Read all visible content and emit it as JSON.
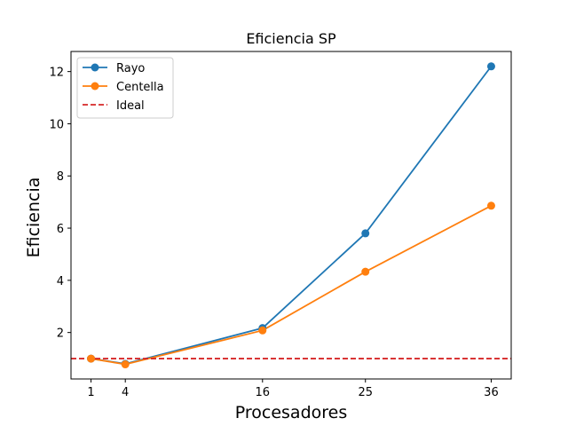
{
  "chart_data": {
    "type": "line",
    "title": "Eficiencia SP",
    "xlabel": "Procesadores",
    "ylabel": "Eficiencia",
    "x": [
      1,
      4,
      16,
      25,
      36
    ],
    "xticks": [
      "1",
      "4",
      "16",
      "25",
      "36"
    ],
    "yticks": [
      "2",
      "4",
      "6",
      "8",
      "10",
      "12"
    ],
    "xlim": [
      -0.75,
      37.75
    ],
    "ylim": [
      0.22,
      12.77
    ],
    "grid": false,
    "legend_position": "top-left",
    "series": [
      {
        "name": "Rayo",
        "color": "#1f77b4",
        "style": "solid",
        "marker": "circle",
        "values": [
          1.0,
          0.8,
          2.17,
          5.8,
          12.2
        ]
      },
      {
        "name": "Centella",
        "color": "#ff7f0e",
        "style": "solid",
        "marker": "circle",
        "values": [
          1.0,
          0.78,
          2.08,
          4.33,
          6.86
        ]
      },
      {
        "name": "Ideal",
        "color": "#d62728",
        "style": "dashed",
        "marker": "none",
        "values": [
          1,
          1,
          1,
          1,
          1
        ]
      }
    ]
  }
}
